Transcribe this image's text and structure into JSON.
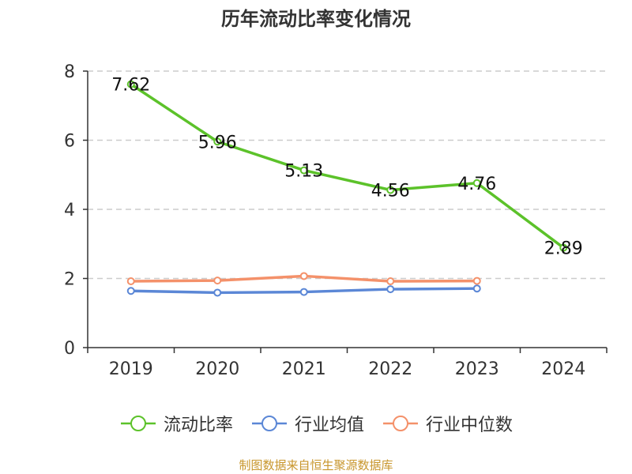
{
  "title": "历年流动比率变化情况",
  "source": "制图数据来自恒生聚源数据库",
  "colors": {
    "series1": "#5cc22a",
    "series2": "#5b87d6",
    "series3": "#f4916a",
    "grid": "#cccccc",
    "axis": "#333333"
  },
  "chart_data": {
    "type": "line",
    "title": "历年流动比率变化情况",
    "categories": [
      "2019",
      "2020",
      "2021",
      "2022",
      "2023",
      "2024"
    ],
    "ylim": [
      0,
      8
    ],
    "yticks": [
      0,
      2,
      4,
      6,
      8
    ],
    "grid": true,
    "legend_position": "bottom-center",
    "series": [
      {
        "name": "流动比率",
        "values": [
          7.62,
          5.96,
          5.13,
          4.56,
          4.76,
          2.89
        ],
        "labels": [
          "7.62",
          "5.96",
          "5.13",
          "4.56",
          "4.76",
          "2.89"
        ],
        "show_labels": true
      },
      {
        "name": "行业均值",
        "values": [
          1.64,
          1.59,
          1.61,
          1.69,
          1.71,
          null
        ],
        "show_labels": false
      },
      {
        "name": "行业中位数",
        "values": [
          1.92,
          1.94,
          2.07,
          1.92,
          1.93,
          null
        ],
        "show_labels": false
      }
    ]
  }
}
